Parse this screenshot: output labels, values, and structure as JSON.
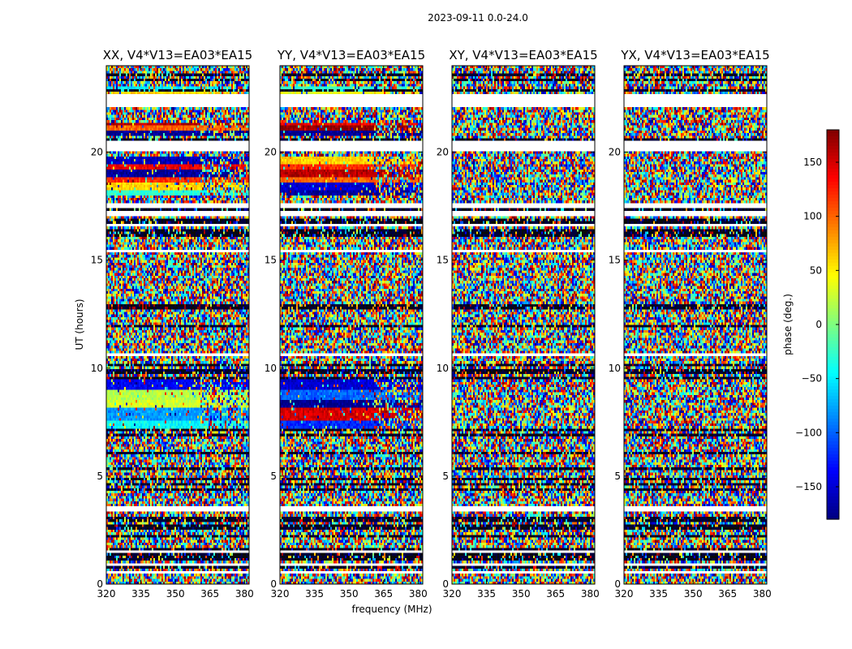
{
  "chart_data": {
    "type": "heatmap",
    "title": "2023-09-11 0.0-24.0",
    "xlabel": "frequency (MHz)",
    "ylabel": "UT (hours)",
    "xlim": [
      320,
      382
    ],
    "ylim": [
      0,
      24
    ],
    "xticks": [
      320,
      335,
      350,
      365,
      380
    ],
    "yticks": [
      0,
      5,
      10,
      15,
      20
    ],
    "colorbar": {
      "label": "phase (deg.)",
      "range": [
        -180,
        180
      ],
      "ticks": [
        150,
        100,
        50,
        0,
        -50,
        -100,
        -150
      ],
      "tick_labels": [
        "150",
        "100",
        "50",
        "0",
        "−50",
        "−100",
        "−150"
      ],
      "colormap": [
        "#00007f",
        "#0000ff",
        "#007fff",
        "#00ffff",
        "#7fff7f",
        "#ffff00",
        "#ff7f00",
        "#ff0000",
        "#7f0000"
      ]
    },
    "panels": [
      {
        "title": "XX, V4*V13=EA03*EA15",
        "polarization": "XX",
        "coherent": true
      },
      {
        "title": "YY, V4*V13=EA03*EA15",
        "polarization": "YY",
        "coherent": true
      },
      {
        "title": "XY, V4*V13=EA03*EA15",
        "polarization": "XY",
        "coherent": false
      },
      {
        "title": "YX, V4*V13=EA03*EA15",
        "polarization": "YX",
        "coherent": false
      }
    ],
    "flagged_ut_ranges": [
      [
        0.45,
        0.55
      ],
      [
        0.85,
        0.95
      ],
      [
        1.45,
        1.6
      ],
      [
        3.3,
        3.55
      ],
      [
        10.6,
        10.7
      ],
      [
        15.35,
        15.5
      ],
      [
        16.55,
        16.7
      ],
      [
        17.0,
        17.25
      ],
      [
        17.45,
        17.6
      ],
      [
        20.05,
        20.55
      ],
      [
        22.05,
        22.7
      ]
    ],
    "dark_ut_lines": [
      0.6,
      0.75,
      1.15,
      1.3,
      1.35,
      1.65,
      2.2,
      2.4,
      2.55,
      2.75,
      3.0,
      4.35,
      4.65,
      4.9,
      5.3,
      6.05,
      6.6,
      6.85,
      7.1,
      9.55,
      9.75,
      9.95,
      10.2,
      11.9,
      12.8,
      12.95,
      16.2,
      16.35,
      16.8,
      17.3,
      20.6,
      22.8,
      23.35,
      23.55
    ],
    "coherent_bands": [
      {
        "ut": [
          7.2,
          7.55
        ],
        "XX": -45,
        "YY": -120
      },
      {
        "ut": [
          7.55,
          8.2
        ],
        "XX": -80,
        "YY": 150
      },
      {
        "ut": [
          8.2,
          8.5
        ],
        "XX": 30,
        "YY": -175
      },
      {
        "ut": [
          8.5,
          9.0
        ],
        "XX": 20,
        "YY": -100
      },
      {
        "ut": [
          9.0,
          9.5
        ],
        "XX": -140,
        "YY": -150
      },
      {
        "ut": [
          9.8,
          9.95
        ],
        "XX": -170,
        "YY": -170
      },
      {
        "ut": [
          12.75,
          12.95
        ],
        "XX": 170,
        "YY": 80
      },
      {
        "ut": [
          18.0,
          18.3
        ],
        "XX": -30,
        "YY": -170
      },
      {
        "ut": [
          18.3,
          18.6
        ],
        "XX": 60,
        "YY": -150
      },
      {
        "ut": [
          18.6,
          18.9
        ],
        "XX": 120,
        "YY": 100
      },
      {
        "ut": [
          18.9,
          19.2
        ],
        "XX": -170,
        "YY": 160
      },
      {
        "ut": [
          19.2,
          19.5
        ],
        "XX": 140,
        "YY": 120
      },
      {
        "ut": [
          19.5,
          19.75
        ],
        "XX": -160,
        "YY": 60
      },
      {
        "ut": [
          20.8,
          21.0
        ],
        "XX": -175,
        "YY": -175
      },
      {
        "ut": [
          21.0,
          21.2
        ],
        "XX": 100,
        "YY": 175
      },
      {
        "ut": [
          21.2,
          21.35
        ],
        "XX": 160,
        "YY": 140
      },
      {
        "ut": [
          22.7,
          22.85
        ],
        "XX": 60,
        "YY": 40
      },
      {
        "ut": [
          22.85,
          23.05
        ],
        "XX": -50,
        "YY": -30
      }
    ]
  }
}
